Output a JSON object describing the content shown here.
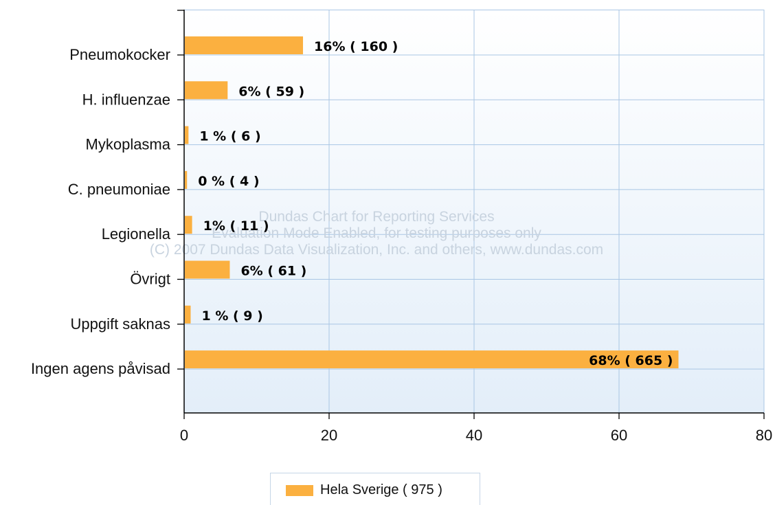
{
  "chart_data": {
    "type": "bar",
    "orientation": "horizontal",
    "categories": [
      "Pneumokocker",
      "H. influenzae",
      "Mykoplasma",
      "C. pneumoniae",
      "Legionella",
      "Övrigt",
      "Uppgift saknas",
      "Ingen agens påvisad"
    ],
    "series": [
      {
        "name": "Hela Sverige ( 975 )",
        "values": [
          16.4,
          6.0,
          0.6,
          0.4,
          1.1,
          6.3,
          0.9,
          68.2
        ],
        "labels": [
          "16% ( 160 )",
          "6% ( 59 )",
          "1 % ( 6 )",
          "0 % ( 4 )",
          "1% ( 11 )",
          "6% ( 61 )",
          "1 % ( 9 )",
          "68% ( 665 )"
        ]
      }
    ],
    "xlim": [
      0,
      80
    ],
    "xticks": [
      0,
      20,
      40,
      60,
      80
    ],
    "grid": true,
    "legend_position": "bottom",
    "colors": {
      "bar": "#fbb040",
      "grid": "#a9c6e4",
      "plot_bg_top": "#ffffff",
      "plot_bg_bottom": "#e3eef9"
    }
  },
  "watermark": [
    "Dundas Chart for Reporting Services",
    "Evaluation Mode Enabled, for testing purposes only",
    "(C) 2007 Dundas Data Visualization, Inc. and others, www.dundas.com"
  ]
}
